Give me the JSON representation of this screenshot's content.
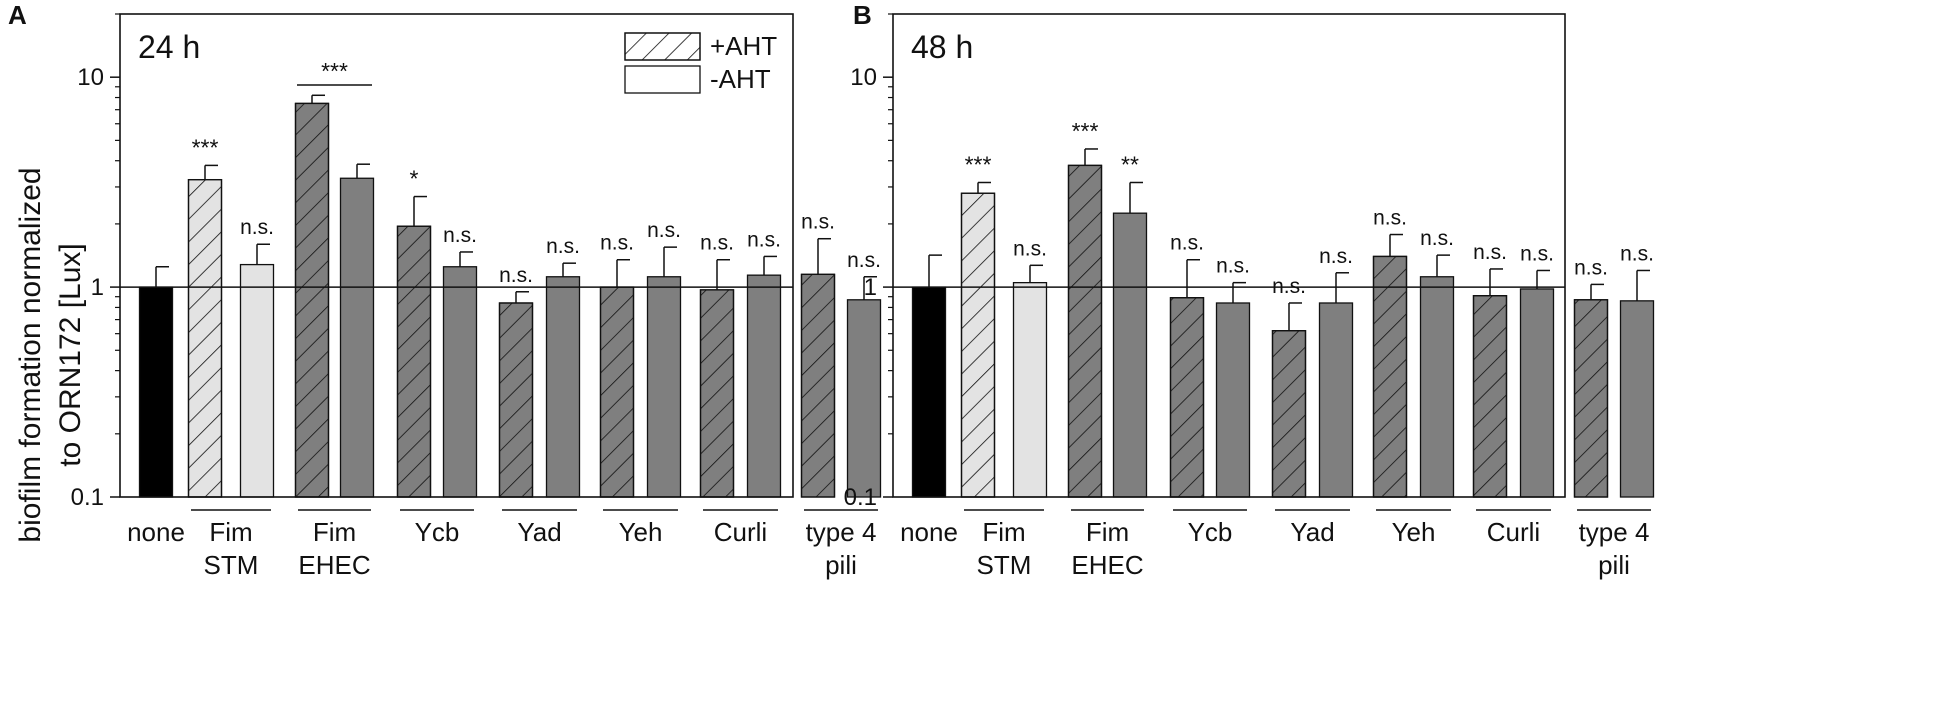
{
  "colors": {
    "none": "#000000",
    "stm": "#e3e3e3",
    "other": "#7f7f7f",
    "edge": "#111111"
  },
  "shared": {
    "ylabel_line1": "biofilm formation normalized",
    "ylabel_line2": "to ORN172 [Lux]",
    "ytick_labels": [
      "0.1",
      "1",
      "10"
    ],
    "ytick_values": [
      0.1,
      1,
      10
    ],
    "groups": [
      {
        "lines": [
          "none"
        ]
      },
      {
        "lines": [
          "Fim",
          "STM"
        ]
      },
      {
        "lines": [
          "Fim",
          "EHEC"
        ]
      },
      {
        "lines": [
          "Ycb"
        ]
      },
      {
        "lines": [
          "Yad"
        ]
      },
      {
        "lines": [
          "Yeh"
        ]
      },
      {
        "lines": [
          "Curli"
        ]
      },
      {
        "lines": [
          "type 4",
          "pili"
        ]
      }
    ],
    "legend": [
      {
        "label": "+AHT",
        "hatch": true
      },
      {
        "label": "-AHT",
        "hatch": false
      }
    ]
  },
  "chart_data": [
    {
      "type": "bar",
      "panel_letter": "A",
      "title": "24 h",
      "yscale": "log",
      "ylim": [
        0.1,
        20
      ],
      "reference_line": 1,
      "legend_location": "top-right",
      "bars": [
        {
          "group": "none",
          "condition": "none",
          "value": 1.0,
          "error": 1.25,
          "sig": ""
        },
        {
          "group": "Fim STM",
          "condition": "+AHT",
          "value": 3.25,
          "error": 3.8,
          "sig": "***"
        },
        {
          "group": "Fim STM",
          "condition": "-AHT",
          "value": 1.28,
          "error": 1.6,
          "sig": "n.s."
        },
        {
          "group": "Fim EHEC",
          "condition": "+AHT",
          "value": 7.5,
          "error": 8.2,
          "sig": ""
        },
        {
          "group": "Fim EHEC",
          "condition": "-AHT",
          "value": 3.3,
          "error": 3.85,
          "sig": ""
        },
        {
          "group": "Ycb",
          "condition": "+AHT",
          "value": 1.95,
          "error": 2.7,
          "sig": "*"
        },
        {
          "group": "Ycb",
          "condition": "-AHT",
          "value": 1.25,
          "error": 1.47,
          "sig": "n.s."
        },
        {
          "group": "Yad",
          "condition": "+AHT",
          "value": 0.84,
          "error": 0.95,
          "sig": "n.s."
        },
        {
          "group": "Yad",
          "condition": "-AHT",
          "value": 1.12,
          "error": 1.3,
          "sig": "n.s."
        },
        {
          "group": "Yeh",
          "condition": "+AHT",
          "value": 1.0,
          "error": 1.35,
          "sig": "n.s."
        },
        {
          "group": "Yeh",
          "condition": "-AHT",
          "value": 1.12,
          "error": 1.55,
          "sig": "n.s."
        },
        {
          "group": "Curli",
          "condition": "+AHT",
          "value": 0.97,
          "error": 1.35,
          "sig": "n.s."
        },
        {
          "group": "Curli",
          "condition": "-AHT",
          "value": 1.14,
          "error": 1.4,
          "sig": "n.s."
        },
        {
          "group": "type 4 pili",
          "condition": "+AHT",
          "value": 1.15,
          "error": 1.7,
          "sig": "n.s."
        },
        {
          "group": "type 4 pili",
          "condition": "-AHT",
          "value": 0.87,
          "error": 1.12,
          "sig": "n.s."
        }
      ],
      "brackets": [
        {
          "from_bar": 3,
          "to_bar": 4,
          "label": "***"
        }
      ]
    },
    {
      "type": "bar",
      "panel_letter": "B",
      "title": "48 h",
      "yscale": "log",
      "ylim": [
        0.1,
        20
      ],
      "reference_line": 1,
      "bars": [
        {
          "group": "none",
          "condition": "none",
          "value": 1.0,
          "error": 1.42,
          "sig": ""
        },
        {
          "group": "Fim STM",
          "condition": "+AHT",
          "value": 2.8,
          "error": 3.15,
          "sig": "***"
        },
        {
          "group": "Fim STM",
          "condition": "-AHT",
          "value": 1.05,
          "error": 1.27,
          "sig": "n.s."
        },
        {
          "group": "Fim EHEC",
          "condition": "+AHT",
          "value": 3.8,
          "error": 4.55,
          "sig": "***"
        },
        {
          "group": "Fim EHEC",
          "condition": "-AHT",
          "value": 2.25,
          "error": 3.15,
          "sig": "**"
        },
        {
          "group": "Ycb",
          "condition": "+AHT",
          "value": 0.89,
          "error": 1.35,
          "sig": "n.s."
        },
        {
          "group": "Ycb",
          "condition": "-AHT",
          "value": 0.84,
          "error": 1.05,
          "sig": "n.s."
        },
        {
          "group": "Yad",
          "condition": "+AHT",
          "value": 0.62,
          "error": 0.84,
          "sig": "n.s."
        },
        {
          "group": "Yad",
          "condition": "-AHT",
          "value": 0.84,
          "error": 1.17,
          "sig": "n.s."
        },
        {
          "group": "Yeh",
          "condition": "+AHT",
          "value": 1.4,
          "error": 1.78,
          "sig": "n.s."
        },
        {
          "group": "Yeh",
          "condition": "-AHT",
          "value": 1.12,
          "error": 1.42,
          "sig": "n.s."
        },
        {
          "group": "Curli",
          "condition": "+AHT",
          "value": 0.91,
          "error": 1.22,
          "sig": "n.s."
        },
        {
          "group": "Curli",
          "condition": "-AHT",
          "value": 0.98,
          "error": 1.2,
          "sig": "n.s."
        },
        {
          "group": "type 4 pili",
          "condition": "+AHT",
          "value": 0.87,
          "error": 1.03,
          "sig": "n.s."
        },
        {
          "group": "type 4 pili",
          "condition": "-AHT",
          "value": 0.86,
          "error": 1.2,
          "sig": "n.s."
        }
      ],
      "brackets": []
    }
  ]
}
